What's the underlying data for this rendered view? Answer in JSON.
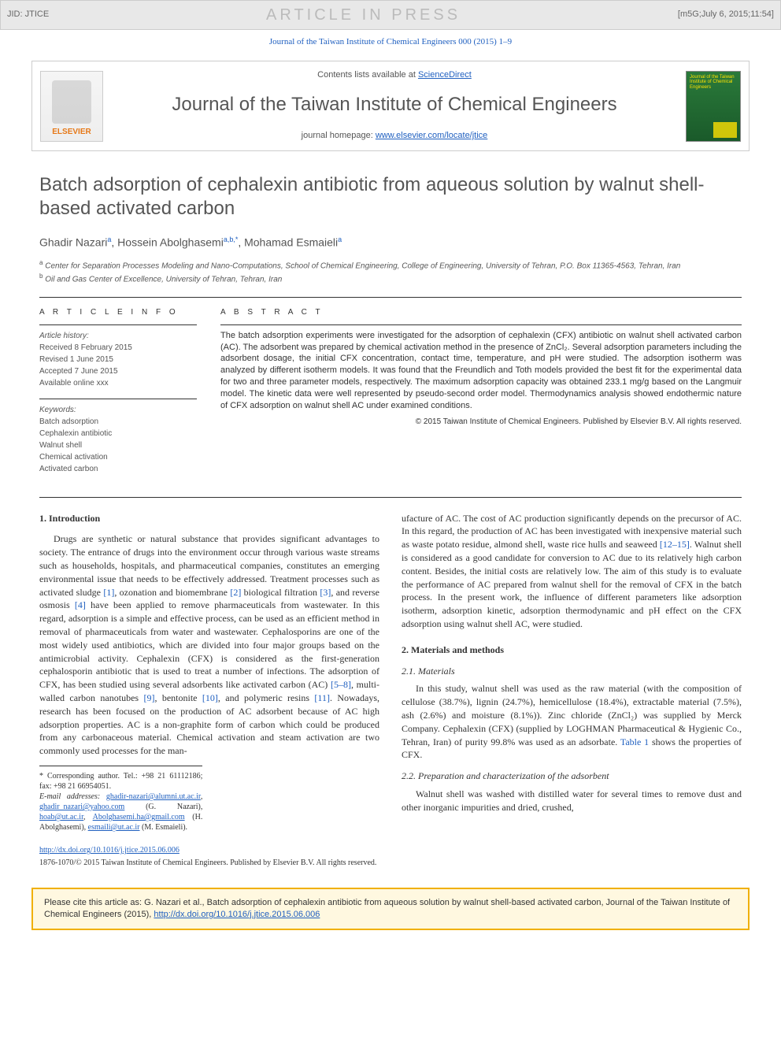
{
  "banner": {
    "jid": "JID: JTICE",
    "center": "ARTICLE IN PRESS",
    "right": "[m5G;July 6, 2015;11:54]"
  },
  "journal_ref": "Journal of the Taiwan Institute of Chemical Engineers 000 (2015) 1–9",
  "header": {
    "elsevier": "ELSEVIER",
    "contents_prefix": "Contents lists available at ",
    "contents_link": "ScienceDirect",
    "journal_name": "Journal of the Taiwan Institute of Chemical Engineers",
    "homepage_prefix": "journal homepage: ",
    "homepage_link": "www.elsevier.com/locate/jtice",
    "cover_text": "Journal of the Taiwan Institute of Chemical Engineers"
  },
  "article": {
    "title": "Batch adsorption of cephalexin antibiotic from aqueous solution by walnut shell-based activated carbon",
    "authors_html": "Ghadir Nazari<sup>a</sup>, Hossein Abolghasemi<sup>a,b,*</sup>, Mohamad Esmaieli<sup>a</sup>",
    "affiliations": [
      "a Center for Separation Processes Modeling and Nano-Computations, School of Chemical Engineering, College of Engineering, University of Tehran, P.O. Box 11365-4563, Tehran, Iran",
      "b Oil and Gas Center of Excellence, University of Tehran, Tehran, Iran"
    ]
  },
  "info": {
    "heading": "A R T I C L E   I N F O",
    "history_label": "Article history:",
    "history": [
      "Received 8 February 2015",
      "Revised 1 June 2015",
      "Accepted 7 June 2015",
      "Available online xxx"
    ],
    "keywords_label": "Keywords:",
    "keywords": [
      "Batch adsorption",
      "Cephalexin antibiotic",
      "Walnut shell",
      "Chemical activation",
      "Activated carbon"
    ]
  },
  "abstract": {
    "heading": "A B S T R A C T",
    "text": "The batch adsorption experiments were investigated for the adsorption of cephalexin (CFX) antibiotic on walnut shell activated carbon (AC). The adsorbent was prepared by chemical activation method in the presence of ZnCl₂. Several adsorption parameters including the adsorbent dosage, the initial CFX concentration, contact time, temperature, and pH were studied. The adsorption isotherm was analyzed by different isotherm models. It was found that the Freundlich and Toth models provided the best fit for the experimental data for two and three parameter models, respectively. The maximum adsorption capacity was obtained 233.1 mg/g based on the Langmuir model. The kinetic data were well represented by pseudo-second order model. Thermodynamics analysis showed endothermic nature of CFX adsorption on walnut shell AC under examined conditions.",
    "copyright": "© 2015 Taiwan Institute of Chemical Engineers. Published by Elsevier B.V. All rights reserved."
  },
  "body": {
    "s1_heading": "1. Introduction",
    "s1_p1": "Drugs are synthetic or natural substance that provides significant advantages to society. The entrance of drugs into the environment occur through various waste streams such as households, hospitals, and pharmaceutical companies, constitutes an emerging environmental issue that needs to be effectively addressed. Treatment processes such as activated sludge ",
    "ref1": "[1]",
    "s1_p1b": ", ozonation and biomembrane ",
    "ref2": "[2]",
    "s1_p1c": " biological filtration ",
    "ref3": "[3]",
    "s1_p1d": ", and reverse osmosis ",
    "ref4": "[4]",
    "s1_p1e": " have been applied to remove pharmaceuticals from wastewater. In this regard, adsorption is a simple and effective process, can be used as an efficient method in removal of pharmaceuticals from water and wastewater. Cephalosporins are one of the most widely used antibiotics, which are divided into four major groups based on the antimicrobial activity. Cephalexin (CFX) is considered as the first-generation cephalosporin antibiotic that is used to treat a number of infections. The adsorption of CFX, has been studied using several adsorbents like activated carbon (AC) ",
    "ref58": "[5–8]",
    "s1_p1f": ", multi-walled carbon nanotubes ",
    "ref9": "[9]",
    "s1_p1g": ", bentonite ",
    "ref10": "[10]",
    "s1_p1h": ", and polymeric resins ",
    "ref11": "[11]",
    "s1_p1i": ". Nowadays, research has been focused on the production of AC adsorbent because of AC high adsorption properties. AC is a non-graphite form of carbon which could be produced from any carbonaceous material. Chemical activation and steam activation are two commonly used processes for the man-",
    "col2_p1": "ufacture of AC. The cost of AC production significantly depends on the precursor of AC. In this regard, the production of AC has been investigated with inexpensive material such as waste potato residue, almond shell, waste rice hulls and seaweed ",
    "ref1215": "[12–15]",
    "col2_p1b": ". Walnut shell is considered as a good candidate for conversion to AC due to its relatively high carbon content. Besides, the initial costs are relatively low. The aim of this study is to evaluate the performance of AC prepared from walnut shell for the removal of CFX in the batch process. In the present work, the influence of different parameters like adsorption isotherm, adsorption kinetic, adsorption thermodynamic and pH effect on the CFX adsorption using walnut shell AC, were studied.",
    "s2_heading": "2. Materials and methods",
    "s21_heading": "2.1. Materials",
    "s21_p": "In this study, walnut shell was used as the raw material (with the composition of cellulose (38.7%), lignin (24.7%), hemicellulose (18.4%), extractable material (7.5%), ash (2.6%) and moisture (8.1%)). Zinc chloride (ZnCl₂) was supplied by Merck Company. Cephalexin (CFX) (supplied by LOGHMAN Pharmaceutical & Hygienic Co., Tehran, Iran) of purity 99.8% was used as an adsorbate. ",
    "table1_ref": "Table 1",
    "s21_pb": " shows the properties of CFX.",
    "s22_heading": "2.2. Preparation and characterization of the adsorbent",
    "s22_p": "Walnut shell was washed with distilled water for several times to remove dust and other inorganic impurities and dried, crushed,"
  },
  "footnotes": {
    "corr": "* Corresponding author. Tel.: +98 21 61112186; fax: +98 21 66954051.",
    "email_label": "E-mail addresses: ",
    "email1": "ghadir-nazari@alumni.ut.ac.ir",
    "email2": "ghadir_nazari@yahoo.com",
    "name1": " (G. Nazari), ",
    "email3": "hoab@ut.ac.ir",
    "email4": "Abolghasemi.ha@gmail.com",
    "name2": " (H. Abolghasemi), ",
    "email5": "esmaili@ut.ac.ir",
    "name3": " (M. Esmaieli)."
  },
  "doi": "http://dx.doi.org/10.1016/j.jtice.2015.06.006",
  "bottom_copyright": "1876-1070/© 2015 Taiwan Institute of Chemical Engineers. Published by Elsevier B.V. All rights reserved.",
  "citebox": {
    "text_a": "Please cite this article as: G. Nazari et al., Batch adsorption of cephalexin antibiotic from aqueous solution by walnut shell-based activated carbon, Journal of the Taiwan Institute of Chemical Engineers (2015), ",
    "link": "http://dx.doi.org/10.1016/j.jtice.2015.06.006"
  },
  "colors": {
    "link": "#2060c0",
    "banner_bg": "#e8e8e8",
    "banner_text_grey": "#bbbbbb",
    "elsevier_orange": "#e67817",
    "citebox_border": "#f0b000",
    "citebox_bg": "#fff8e0",
    "cover_green_top": "#2a7a3a",
    "cover_green_bottom": "#1a5a2a",
    "cover_yellow": "#fce003"
  }
}
